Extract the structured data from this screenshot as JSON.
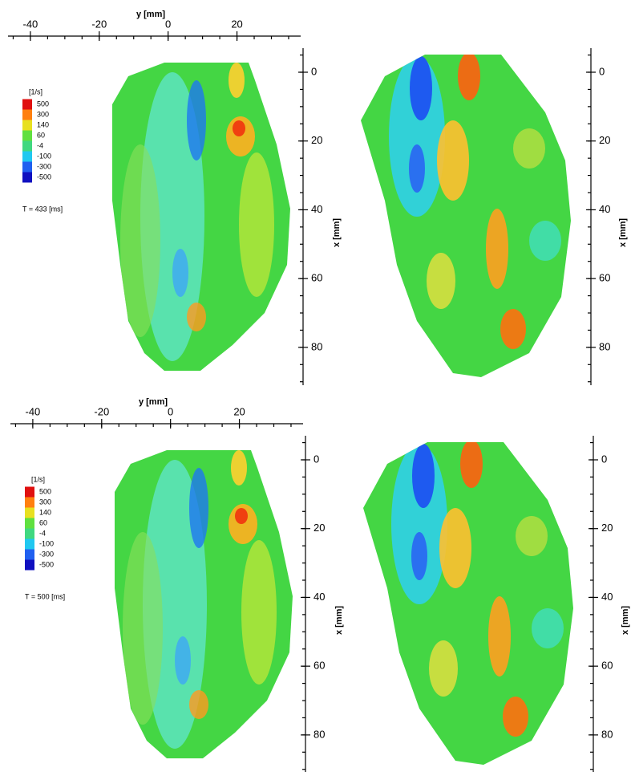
{
  "chart_data": [
    {
      "type": "contour",
      "xlabel": "y [mm]",
      "xlim": [
        -46.5,
        38.5
      ],
      "xticks": [
        -40,
        -20,
        0,
        20
      ],
      "ylabel": "x [mm]",
      "ylim": [
        -7,
        91
      ],
      "yticks": [
        0,
        20,
        40,
        60,
        80
      ],
      "colorbar_label": "[1/s]",
      "colorbar_ticks": [
        500,
        300,
        140,
        60,
        -4,
        -100,
        -300,
        -500
      ],
      "annotation": "T = 433 [ms]"
    },
    {
      "type": "contour",
      "xlabel": "y [mm]",
      "xlim": [
        -46.5,
        38.5
      ],
      "xticks": [
        -40,
        -20,
        0,
        20
      ],
      "ylabel": "x [mm]",
      "ylim": [
        -7,
        91
      ],
      "yticks": [
        0,
        20,
        40,
        60,
        80
      ],
      "colorbar_label": "[1/s]",
      "colorbar_ticks": [
        500,
        300,
        140,
        60,
        -4,
        -100,
        -300,
        -500
      ],
      "annotation": "T = 500 [ms]"
    }
  ]
}
